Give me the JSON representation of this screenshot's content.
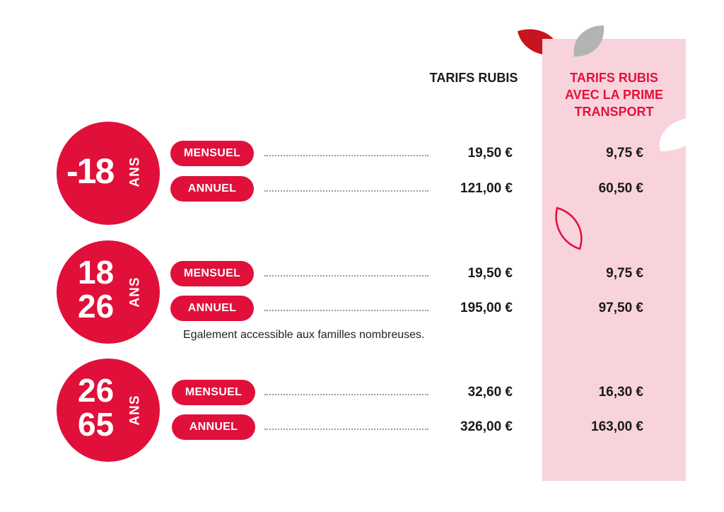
{
  "header": {
    "col_standard": "TARIFS RUBIS",
    "col_prime_line1": "TARIFS RUBIS",
    "col_prime_line2": "AVEC LA PRIME",
    "col_prime_line3": "TRANSPORT"
  },
  "groups": [
    {
      "age_line1": "-18",
      "age_line2": "",
      "age_unit": "ANS",
      "rows": [
        {
          "label": "MENSUEL",
          "price": "19,50 €",
          "price_prime": "9,75 €"
        },
        {
          "label": "ANNUEL",
          "price": "121,00 €",
          "price_prime": "60,50 €"
        }
      ]
    },
    {
      "age_line1": "18",
      "age_line2": "26",
      "age_unit": "ANS",
      "rows": [
        {
          "label": "MENSUEL",
          "price": "19,50 €",
          "price_prime": "9,75 €"
        },
        {
          "label": "ANNUEL",
          "price": "195,00 €",
          "price_prime": "97,50 €"
        }
      ],
      "note": "Egalement accessible aux familles nombreuses."
    },
    {
      "age_line1": "26",
      "age_line2": "65",
      "age_unit": "ANS",
      "rows": [
        {
          "label": "MENSUEL",
          "price": "32,60 €",
          "price_prime": "16,30 €"
        },
        {
          "label": "ANNUEL",
          "price": "326,00 €",
          "price_prime": "163,00 €"
        }
      ]
    }
  ],
  "colors": {
    "brand_red": "#e0103a",
    "pink_column": "#f9d3dc",
    "leaf_grey": "#b3b3b3"
  }
}
